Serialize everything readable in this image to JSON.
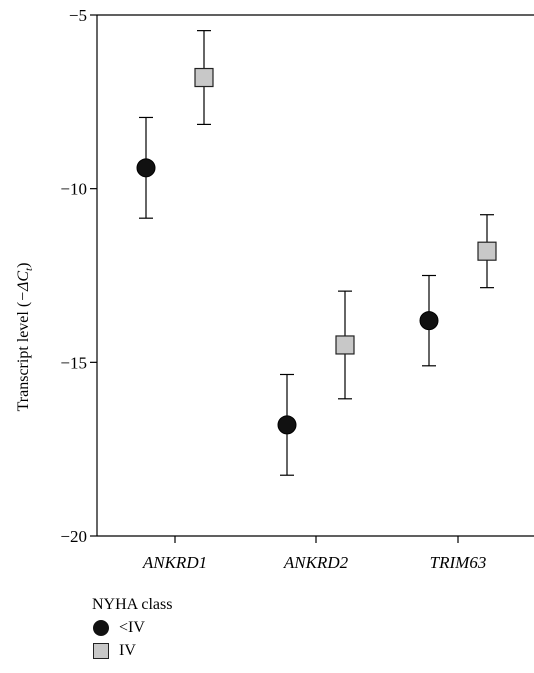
{
  "chart_data": {
    "type": "scatter",
    "ylabel_prefix": "Transcript level (",
    "ylabel_math": "−ΔC",
    "ylabel_sub": "t",
    "ylabel_suffix": ")",
    "ylim": [
      -20,
      -5
    ],
    "yticks": [
      -5,
      -10,
      -15,
      -20
    ],
    "ytick_labels": [
      "−5",
      "−10",
      "−15",
      "−20"
    ],
    "categories": [
      "ANKRD1",
      "ANKRD2",
      "TRIM63"
    ],
    "series": [
      {
        "name": "<IV",
        "marker": "circle",
        "color": "#111111",
        "values": [
          -9.4,
          -16.8,
          -13.8
        ],
        "errors": [
          1.45,
          1.45,
          1.3
        ]
      },
      {
        "name": "IV",
        "marker": "square",
        "color": "#c8c8c8",
        "values": [
          -6.8,
          -14.5,
          -11.8
        ],
        "errors": [
          1.35,
          1.55,
          1.05
        ]
      }
    ],
    "legend": {
      "title": "NYHA class",
      "placement": "bottom-left"
    }
  }
}
